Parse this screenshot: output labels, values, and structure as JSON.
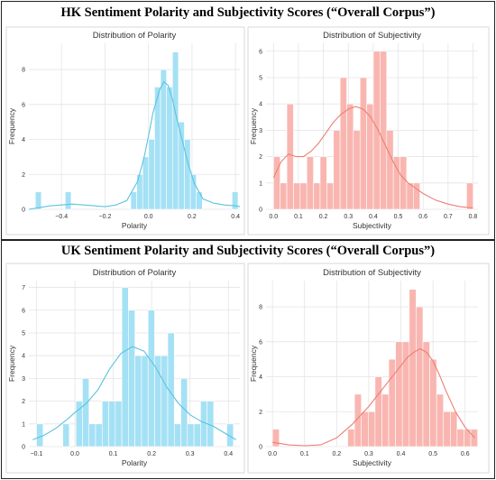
{
  "sections": [
    {
      "title": "HK Sentiment Polarity and Subjectivity Scores (“Overall Corpus”)"
    },
    {
      "title": "UK Sentiment Polarity and Subjectivity Scores (“Overall Corpus”)"
    }
  ],
  "colors": {
    "blue_bar": "#a5e1f5",
    "blue_line": "#5bc3e0",
    "red_bar": "#f9b6b1",
    "red_line": "#ec7f73"
  },
  "chart_data": [
    {
      "type": "bar",
      "title": "Distribution of Polarity",
      "xlabel": "Polarity",
      "ylabel": "Frequency",
      "xlim": [
        -0.55,
        0.42
      ],
      "ylim": [
        0,
        9.5
      ],
      "xticks": [
        -0.4,
        -0.2,
        0.0,
        0.2,
        0.4
      ],
      "xtick_labels": [
        "−0.4",
        "−0.2",
        "0.0",
        "0.2",
        "0.4"
      ],
      "yticks": [
        0,
        2,
        4,
        6,
        8
      ],
      "bin_start": -0.52,
      "bin_width": 0.0274,
      "values": [
        1,
        0,
        0,
        0,
        0,
        1,
        0,
        0,
        0,
        0,
        0,
        0,
        0,
        0,
        0,
        0,
        1,
        2,
        3,
        4,
        7,
        8,
        7,
        9,
        5,
        4,
        2,
        1,
        0,
        0,
        0,
        0,
        0,
        1
      ],
      "kde_x": [
        -0.55,
        -0.45,
        -0.35,
        -0.25,
        -0.2,
        -0.15,
        -0.1,
        -0.05,
        -0.02,
        0.0,
        0.02,
        0.05,
        0.07,
        0.09,
        0.11,
        0.13,
        0.15,
        0.18,
        0.21,
        0.25,
        0.3,
        0.35,
        0.4,
        0.42
      ],
      "kde_y": [
        0.0,
        0.2,
        0.3,
        0.2,
        0.15,
        0.25,
        0.5,
        1.6,
        3.0,
        4.2,
        5.5,
        6.8,
        7.3,
        7.1,
        6.3,
        5.2,
        4.2,
        2.7,
        1.5,
        0.6,
        0.35,
        0.25,
        0.2,
        0.15
      ],
      "color": "blue"
    },
    {
      "type": "bar",
      "title": "Distribution of Subjectivity",
      "xlabel": "Subjectivity",
      "ylabel": "Frequency",
      "xlim": [
        -0.03,
        0.82
      ],
      "ylim": [
        0,
        6.3
      ],
      "xticks": [
        0.0,
        0.1,
        0.2,
        0.3,
        0.4,
        0.5,
        0.6,
        0.7,
        0.8
      ],
      "xtick_labels": [
        "0.0",
        "0.1",
        "0.2",
        "0.3",
        "0.4",
        "0.5",
        "0.6",
        "0.7",
        "0.8"
      ],
      "yticks": [
        0,
        1,
        2,
        3,
        4,
        5,
        6
      ],
      "bin_start": 0.0,
      "bin_width": 0.0267,
      "values": [
        2,
        1,
        4,
        1,
        1,
        2,
        1,
        2,
        1,
        3,
        5,
        4,
        3,
        5,
        4,
        6,
        6,
        3,
        2,
        2,
        1,
        1,
        0,
        0,
        0,
        0,
        0,
        0,
        0,
        1
      ],
      "kde_x": [
        0.0,
        0.03,
        0.06,
        0.09,
        0.12,
        0.15,
        0.18,
        0.21,
        0.24,
        0.27,
        0.3,
        0.33,
        0.36,
        0.39,
        0.42,
        0.45,
        0.48,
        0.51,
        0.54,
        0.57,
        0.6,
        0.65,
        0.7,
        0.75,
        0.8
      ],
      "kde_y": [
        1.2,
        1.8,
        2.1,
        2.0,
        2.0,
        2.2,
        2.5,
        2.9,
        3.3,
        3.6,
        3.8,
        3.9,
        3.8,
        3.5,
        3.0,
        2.4,
        1.8,
        1.3,
        1.0,
        0.8,
        0.6,
        0.35,
        0.2,
        0.1,
        0.05
      ],
      "color": "red"
    },
    {
      "type": "bar",
      "title": "Distribution of Polarity",
      "xlabel": "Polarity",
      "ylabel": "Frequency",
      "xlim": [
        -0.12,
        0.43
      ],
      "ylim": [
        0,
        7.3
      ],
      "xticks": [
        -0.1,
        0.0,
        0.1,
        0.2,
        0.3,
        0.4
      ],
      "xtick_labels": [
        "−0.1",
        "0.0",
        "0.1",
        "0.2",
        "0.3",
        "0.4"
      ],
      "yticks": [
        0,
        1,
        2,
        3,
        4,
        5,
        6,
        7
      ],
      "bin_start": -0.1,
      "bin_width": 0.0171,
      "values": [
        1,
        0,
        0,
        0,
        1,
        0,
        2,
        3,
        1,
        1,
        2,
        2,
        2,
        7,
        6,
        4,
        4,
        6,
        4,
        4,
        5,
        1,
        3,
        1,
        1,
        2,
        2,
        0,
        0,
        1
      ],
      "kde_x": [
        -0.11,
        -0.08,
        -0.05,
        -0.02,
        0.0,
        0.03,
        0.06,
        0.09,
        0.12,
        0.15,
        0.18,
        0.21,
        0.24,
        0.27,
        0.3,
        0.33,
        0.36,
        0.39,
        0.42
      ],
      "kde_y": [
        0.3,
        0.5,
        0.8,
        1.2,
        1.5,
        1.9,
        2.5,
        3.4,
        4.1,
        4.4,
        4.2,
        3.5,
        2.6,
        1.9,
        1.4,
        1.1,
        0.9,
        0.6,
        0.3
      ],
      "color": "blue"
    },
    {
      "type": "bar",
      "title": "Distribution of Subjectivity",
      "xlabel": "Subjectivity",
      "ylabel": "Frequency",
      "xlim": [
        -0.02,
        0.64
      ],
      "ylim": [
        0,
        9.5
      ],
      "xticks": [
        0.0,
        0.1,
        0.2,
        0.3,
        0.4,
        0.5,
        0.6
      ],
      "xtick_labels": [
        "0.0",
        "0.1",
        "0.2",
        "0.3",
        "0.4",
        "0.5",
        "0.6"
      ],
      "yticks": [
        0,
        2,
        4,
        6,
        8
      ],
      "bin_start": 0.0,
      "bin_width": 0.0213,
      "values": [
        1,
        0,
        0,
        0,
        0,
        0,
        0,
        0,
        0,
        0,
        0,
        1,
        3,
        2,
        2,
        4,
        3,
        5,
        6,
        6,
        9,
        8,
        6,
        5,
        3,
        2,
        2,
        1,
        1,
        1
      ],
      "kde_x": [
        0.0,
        0.05,
        0.1,
        0.15,
        0.2,
        0.25,
        0.3,
        0.33,
        0.36,
        0.39,
        0.42,
        0.44,
        0.46,
        0.48,
        0.5,
        0.52,
        0.54,
        0.57,
        0.6,
        0.63
      ],
      "kde_y": [
        0.25,
        0.1,
        0.05,
        0.1,
        0.5,
        1.3,
        2.3,
        3.0,
        3.7,
        4.4,
        5.1,
        5.4,
        5.6,
        5.4,
        4.9,
        4.1,
        3.2,
        2.0,
        1.1,
        0.5
      ],
      "color": "red"
    }
  ]
}
